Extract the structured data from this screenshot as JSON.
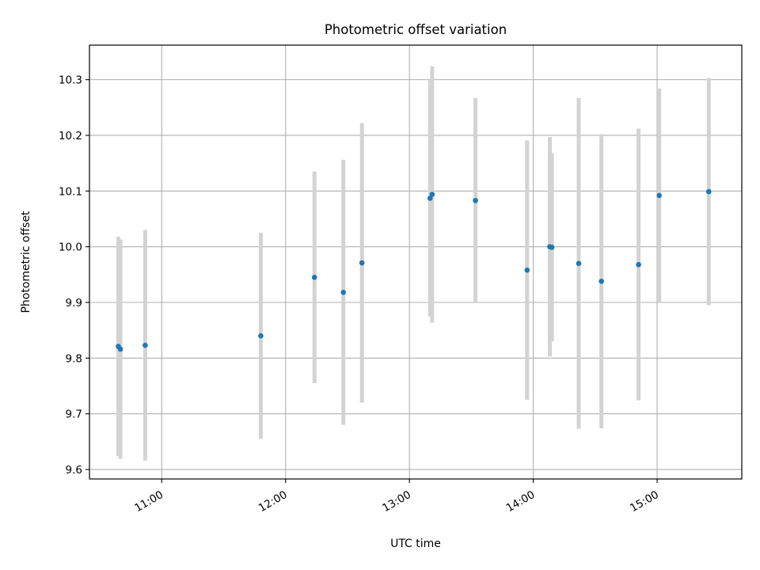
{
  "chart_data": {
    "type": "scatter",
    "title": "Photometric offset variation",
    "xlabel": "UTC time",
    "ylabel": "Photometric offset",
    "x_ticks": [
      "11:00",
      "12:00",
      "13:00",
      "14:00",
      "15:00"
    ],
    "y_ticks": [
      "9.6",
      "9.7",
      "9.8",
      "9.9",
      "10.0",
      "10.1",
      "10.2",
      "10.3"
    ],
    "xlim": [
      "10:25",
      "15:41"
    ],
    "ylim": [
      9.583,
      10.362
    ],
    "grid": true,
    "colors": {
      "point": "#1f77b4",
      "errorbar": "#d3d3d3",
      "grid": "#b0b0b0"
    },
    "points": [
      {
        "x": "10:39",
        "y": 9.821,
        "err": 0.197
      },
      {
        "x": "10:40",
        "y": 9.816,
        "err": 0.197
      },
      {
        "x": "10:52",
        "y": 9.823,
        "err": 0.207
      },
      {
        "x": "11:48",
        "y": 9.84,
        "err": 0.185
      },
      {
        "x": "12:14",
        "y": 9.945,
        "err": 0.19
      },
      {
        "x": "12:28",
        "y": 9.918,
        "err": 0.238
      },
      {
        "x": "12:37",
        "y": 9.971,
        "err": 0.251
      },
      {
        "x": "13:10",
        "y": 10.087,
        "err": 0.212
      },
      {
        "x": "13:11",
        "y": 10.094,
        "err": 0.23
      },
      {
        "x": "13:32",
        "y": 10.083,
        "err": 0.184
      },
      {
        "x": "13:57",
        "y": 9.958,
        "err": 0.233
      },
      {
        "x": "14:08",
        "y": 10.0,
        "err": 0.197
      },
      {
        "x": "14:09",
        "y": 9.999,
        "err": 0.169
      },
      {
        "x": "14:22",
        "y": 9.97,
        "err": 0.297
      },
      {
        "x": "14:33",
        "y": 9.938,
        "err": 0.264
      },
      {
        "x": "14:51",
        "y": 9.968,
        "err": 0.244
      },
      {
        "x": "15:01",
        "y": 10.092,
        "err": 0.192
      },
      {
        "x": "15:25",
        "y": 10.099,
        "err": 0.204
      }
    ]
  }
}
